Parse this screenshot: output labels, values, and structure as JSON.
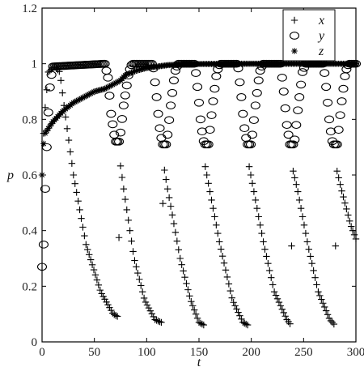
{
  "chart_data": {
    "type": "scatter",
    "xlabel": "t",
    "ylabel": "p",
    "xlim": [
      0,
      300
    ],
    "ylim": [
      0,
      1.2
    ],
    "x_ticks": [
      0,
      50,
      100,
      150,
      200,
      250,
      300
    ],
    "x_tick_labels": [
      "0",
      "50",
      "100",
      "150",
      "200",
      "250",
      "300"
    ],
    "y_ticks": [
      0,
      0.2,
      0.4,
      0.6,
      0.8,
      1.0,
      1.2
    ],
    "y_tick_labels": [
      "0",
      "0.2",
      "0.4",
      "0.6",
      "0.8",
      "1",
      "1.2"
    ],
    "grid": false,
    "legend_position": "top-right",
    "series": [
      {
        "name": "x",
        "marker": "plus",
        "color": "#000000",
        "keyframes": [
          [
            0,
            0.6
          ],
          [
            2,
            0.8
          ],
          [
            6,
            0.97
          ],
          [
            12,
            0.99
          ],
          [
            17,
            0.97
          ],
          [
            21,
            0.85
          ],
          [
            30,
            0.6
          ],
          [
            42,
            0.35
          ],
          [
            56,
            0.18
          ],
          [
            68,
            0.1
          ],
          [
            73,
            0.09
          ],
          [
            74,
            0.66
          ],
          [
            78,
            0.55
          ],
          [
            88,
            0.3
          ],
          [
            98,
            0.15
          ],
          [
            108,
            0.08
          ],
          [
            114,
            0.07
          ],
          [
            116,
            0.64
          ],
          [
            120,
            0.55
          ],
          [
            132,
            0.3
          ],
          [
            142,
            0.15
          ],
          [
            150,
            0.07
          ],
          [
            155,
            0.06
          ],
          [
            156,
            0.63
          ],
          [
            160,
            0.55
          ],
          [
            170,
            0.35
          ],
          [
            182,
            0.15
          ],
          [
            192,
            0.07
          ],
          [
            197,
            0.06
          ],
          [
            198,
            0.63
          ],
          [
            202,
            0.55
          ],
          [
            212,
            0.35
          ],
          [
            222,
            0.18
          ],
          [
            234,
            0.08
          ],
          [
            238,
            0.06
          ],
          [
            239,
            0.63
          ],
          [
            244,
            0.55
          ],
          [
            254,
            0.35
          ],
          [
            264,
            0.18
          ],
          [
            275,
            0.08
          ],
          [
            280,
            0.06
          ],
          [
            281,
            0.63
          ],
          [
            286,
            0.55
          ],
          [
            295,
            0.42
          ],
          [
            300,
            0.37
          ]
        ]
      },
      {
        "name": "y",
        "marker": "circle",
        "color": "#000000",
        "keyframes": [
          [
            0,
            0.27
          ],
          [
            1,
            0.3
          ],
          [
            2,
            0.4
          ],
          [
            3,
            0.55
          ],
          [
            5,
            0.75
          ],
          [
            7,
            0.9
          ],
          [
            10,
            0.99
          ],
          [
            60,
            1.0
          ],
          [
            63,
            0.95
          ],
          [
            66,
            0.82
          ],
          [
            70,
            0.72
          ],
          [
            74,
            0.72
          ],
          [
            78,
            0.85
          ],
          [
            83,
            0.97
          ],
          [
            86,
            1.0
          ],
          [
            106,
            1.0
          ],
          [
            109,
            0.9
          ],
          [
            112,
            0.78
          ],
          [
            115,
            0.71
          ],
          [
            119,
            0.71
          ],
          [
            123,
            0.85
          ],
          [
            127,
            0.97
          ],
          [
            130,
            1.0
          ],
          [
            146,
            1.0
          ],
          [
            149,
            0.9
          ],
          [
            152,
            0.78
          ],
          [
            155,
            0.71
          ],
          [
            159,
            0.71
          ],
          [
            163,
            0.85
          ],
          [
            167,
            0.97
          ],
          [
            170,
            1.0
          ],
          [
            187,
            1.0
          ],
          [
            190,
            0.9
          ],
          [
            193,
            0.78
          ],
          [
            196,
            0.71
          ],
          [
            200,
            0.71
          ],
          [
            204,
            0.85
          ],
          [
            208,
            0.97
          ],
          [
            211,
            1.0
          ],
          [
            228,
            1.0
          ],
          [
            231,
            0.9
          ],
          [
            234,
            0.78
          ],
          [
            237,
            0.71
          ],
          [
            241,
            0.71
          ],
          [
            245,
            0.85
          ],
          [
            249,
            0.97
          ],
          [
            252,
            1.0
          ],
          [
            269,
            1.0
          ],
          [
            272,
            0.9
          ],
          [
            275,
            0.78
          ],
          [
            278,
            0.71
          ],
          [
            282,
            0.71
          ],
          [
            286,
            0.85
          ],
          [
            290,
            0.97
          ],
          [
            293,
            1.0
          ],
          [
            300,
            1.0
          ]
        ]
      },
      {
        "name": "z",
        "marker": "asterisk",
        "color": "#000000",
        "keyframes": [
          [
            0,
            0.6
          ],
          [
            1,
            0.7
          ],
          [
            3,
            0.75
          ],
          [
            10,
            0.79
          ],
          [
            20,
            0.83
          ],
          [
            30,
            0.86
          ],
          [
            40,
            0.88
          ],
          [
            50,
            0.9
          ],
          [
            60,
            0.91
          ],
          [
            70,
            0.93
          ],
          [
            75,
            0.94
          ],
          [
            80,
            0.96
          ],
          [
            90,
            0.975
          ],
          [
            100,
            0.985
          ],
          [
            120,
            0.995
          ],
          [
            150,
            0.999
          ],
          [
            200,
            1.0
          ],
          [
            300,
            1.0
          ]
        ]
      }
    ]
  }
}
